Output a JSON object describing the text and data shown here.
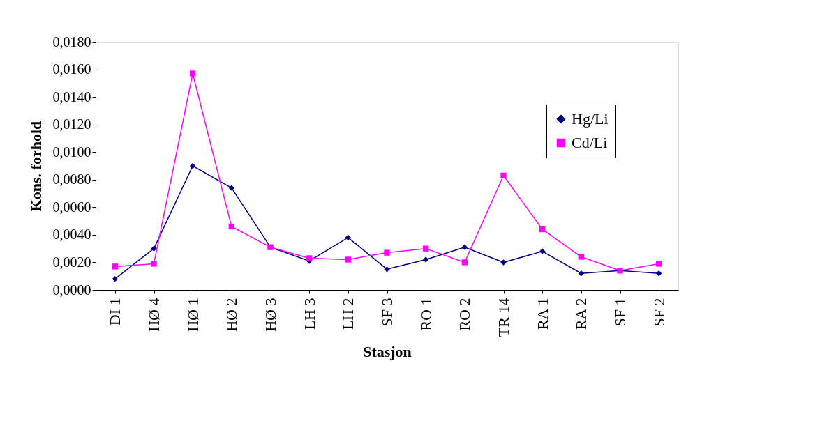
{
  "chart_data": {
    "type": "line",
    "xlabel": "Stasjon",
    "ylabel": "Kons. forhold",
    "categories": [
      "DI 1",
      "HØ 4",
      "HØ 1",
      "HØ 2",
      "HØ 3",
      "LH 3",
      "LH 2",
      "SF 3",
      "RO 1",
      "RO 2",
      "TR 14",
      "RA 1",
      "RA 2",
      "SF 1",
      "SF 2"
    ],
    "series": [
      {
        "name": "Hg/Li",
        "color": "#000080",
        "marker": "diamond",
        "values": [
          0.0008,
          0.003,
          0.009,
          0.0074,
          0.0031,
          0.0021,
          0.0038,
          0.0015,
          0.0022,
          0.0031,
          0.002,
          0.0028,
          0.0012,
          0.0014,
          0.0012
        ]
      },
      {
        "name": "Cd/Li",
        "color": "#ff00ff",
        "marker": "square",
        "values": [
          0.0017,
          0.0019,
          0.0157,
          0.0046,
          0.0031,
          0.0023,
          0.0022,
          0.0027,
          0.003,
          0.002,
          0.0083,
          0.0044,
          0.0024,
          0.0014,
          0.0019
        ]
      }
    ],
    "ylim": [
      0,
      0.018
    ],
    "yticks": [
      {
        "value": 0,
        "label": "0,0000"
      },
      {
        "value": 0.002,
        "label": "0,0020"
      },
      {
        "value": 0.004,
        "label": "0,0040"
      },
      {
        "value": 0.006,
        "label": "0,0060"
      },
      {
        "value": 0.008,
        "label": "0,0080"
      },
      {
        "value": 0.01,
        "label": "0,0100"
      },
      {
        "value": 0.012,
        "label": "0,0120"
      },
      {
        "value": 0.014,
        "label": "0,0140"
      },
      {
        "value": 0.016,
        "label": "0,0160"
      },
      {
        "value": 0.018,
        "label": "0,0180"
      }
    ],
    "grid": false,
    "legend": "top right",
    "line_style": "solid"
  }
}
